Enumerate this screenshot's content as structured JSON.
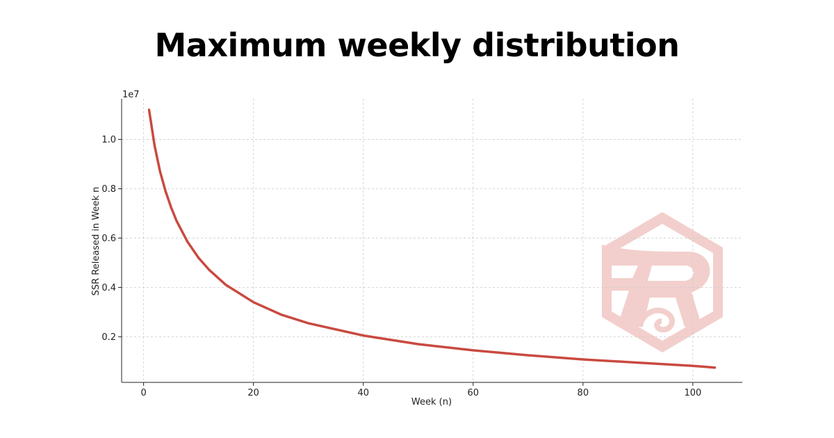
{
  "page": {
    "title": "Maximum weekly distribution"
  },
  "chart_data": {
    "type": "line",
    "title": "Maximum weekly distribution",
    "xlabel": "Week (n)",
    "ylabel": "SSR Released in Week n",
    "y_offset_label": "1e7",
    "xlim": [
      -4,
      109
    ],
    "ylim": [
      0.015,
      1.165
    ],
    "x_ticks": [
      0,
      20,
      40,
      60,
      80,
      100
    ],
    "y_ticks": [
      0.2,
      0.4,
      0.6,
      0.8,
      1.0
    ],
    "x_tick_labels": [
      "0",
      "20",
      "40",
      "60",
      "80",
      "100"
    ],
    "y_tick_labels": [
      "0.2",
      "0.4",
      "0.6",
      "0.8",
      "1.0"
    ],
    "grid": true,
    "line_color": "#c94a40",
    "series": [
      {
        "x": [
          1,
          2,
          3,
          4,
          5,
          6,
          8,
          10,
          12,
          15,
          20,
          25,
          30,
          40,
          50,
          60,
          70,
          80,
          90,
          100,
          104
        ],
        "values": [
          1.12,
          0.975,
          0.87,
          0.79,
          0.725,
          0.67,
          0.585,
          0.52,
          0.47,
          0.41,
          0.34,
          0.29,
          0.255,
          0.205,
          0.17,
          0.145,
          0.125,
          0.108,
          0.095,
          0.082,
          0.075
        ]
      }
    ]
  },
  "watermark": {
    "icon": "r-hexagon-logo-icon",
    "color": "#f2cfcc"
  }
}
